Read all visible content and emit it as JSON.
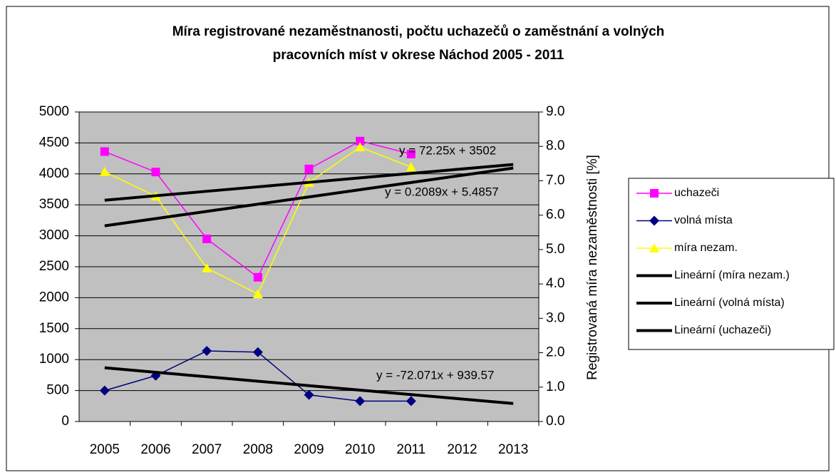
{
  "chart_data": {
    "type": "line",
    "title_lines": [
      "Míra registrované nezaměstnanosti, počtu uchazečů o zaměstnání a volných",
      "pracovních míst v okrese Náchod 2005 - 2011"
    ],
    "y2_label": "Registrovaná míra nezaměstnosti [%]",
    "categories": [
      "2005",
      "2006",
      "2007",
      "2008",
      "2009",
      "2010",
      "2011",
      "2012",
      "2013"
    ],
    "ylim": [
      0,
      5000
    ],
    "yticks": [
      0,
      500,
      1000,
      1500,
      2000,
      2500,
      3000,
      3500,
      4000,
      4500,
      5000
    ],
    "y2lim": [
      0,
      9
    ],
    "y2ticks": [
      {
        "value": 0,
        "label": "0.0"
      },
      {
        "value": 1,
        "label": "1.0"
      },
      {
        "value": 2,
        "label": "2.0"
      },
      {
        "value": 3,
        "label": "3.0"
      },
      {
        "value": 4,
        "label": "4.0"
      },
      {
        "value": 5,
        "label": "5.0"
      },
      {
        "value": 6,
        "label": "6.0"
      },
      {
        "value": 7,
        "label": "7.0"
      },
      {
        "value": 8,
        "label": "8.0"
      },
      {
        "value": 9,
        "label": "9.0"
      }
    ],
    "grid": true,
    "legend": "right",
    "series": [
      {
        "name": "uchazeči",
        "color": "#ff00ff",
        "marker": "square",
        "values": [
          4360,
          4030,
          2950,
          2330,
          4080,
          4530,
          4320,
          null,
          null
        ]
      },
      {
        "name": "volná místa",
        "color": "#000080",
        "marker": "diamond",
        "values": [
          500,
          740,
          1140,
          1120,
          430,
          330,
          330,
          null,
          null
        ]
      },
      {
        "name": "míra nezam.",
        "color": "#ffff00",
        "marker": "triangle",
        "axis": "y2",
        "values": [
          7.26,
          6.55,
          4.46,
          3.71,
          6.95,
          7.98,
          7.4,
          null,
          null
        ]
      },
      {
        "name": "Lineární (míra nezam.)",
        "color": "#000000",
        "axis": "y2",
        "values": [
          5.69,
          5.9,
          6.11,
          6.32,
          6.53,
          6.74,
          6.95,
          7.16,
          7.37
        ]
      },
      {
        "name": "Lineární (volná místa)",
        "color": "#000000",
        "values": [
          868,
          795,
          723,
          651,
          579,
          507,
          435,
          363,
          291
        ]
      },
      {
        "name": "Lineární (uchazeči)",
        "color": "#000000",
        "values": [
          3574,
          3647,
          3719,
          3791,
          3863,
          3936,
          4008,
          4080,
          4152
        ]
      }
    ],
    "annotations": [
      "y = 72.25x + 3502",
      "y = 0.2089x + 5.4857",
      "y = -72.071x + 939.57"
    ]
  }
}
